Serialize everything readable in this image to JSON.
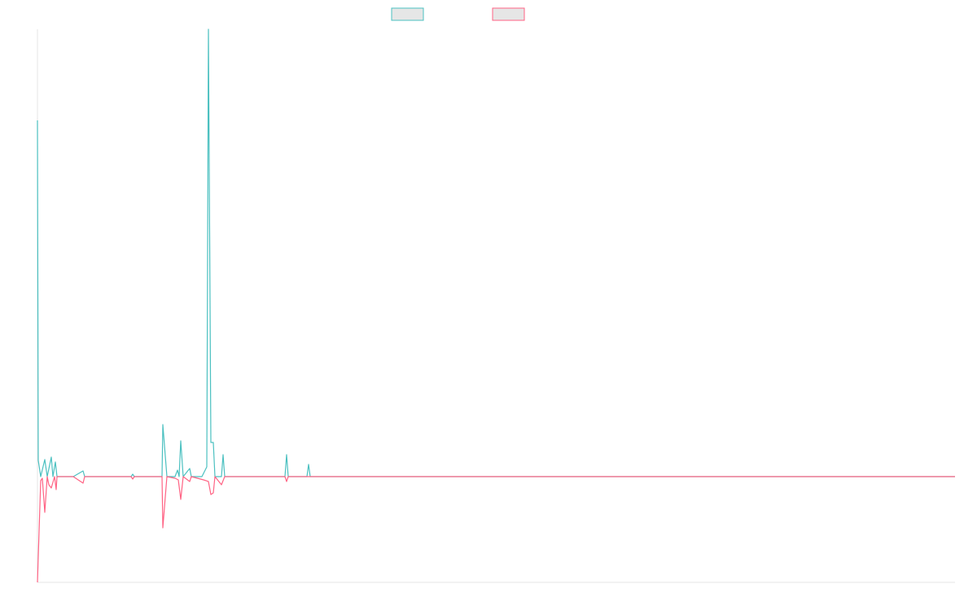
{
  "chart_data": {
    "type": "line",
    "title": "",
    "xlabel": "",
    "ylabel": "",
    "grid": false,
    "legend": "top",
    "colors": {
      "series_a": "#4bc0c0",
      "series_b": "#ff6384",
      "legend_fill": "#e6e6e6",
      "axis": "#e5e5e5"
    },
    "x": [
      0,
      1,
      2,
      3,
      4,
      5,
      6,
      7,
      8,
      9,
      10,
      11,
      12,
      13,
      14,
      15,
      16,
      17,
      18,
      19,
      20,
      21,
      22,
      23,
      24,
      25,
      26,
      27,
      28,
      29,
      30,
      31,
      32,
      33,
      34,
      35,
      36,
      37,
      38,
      39,
      40,
      41,
      42,
      43,
      44,
      45,
      46,
      47,
      48,
      49,
      50,
      51,
      52,
      53,
      54,
      55,
      56,
      57,
      58,
      59,
      60,
      61,
      62,
      63,
      64,
      65,
      66,
      67,
      68,
      69,
      70,
      71,
      72,
      73,
      74,
      75,
      76,
      77,
      78,
      79,
      80,
      81,
      82,
      83,
      84,
      85,
      86,
      87,
      88,
      89,
      90,
      91,
      92,
      93,
      94,
      95,
      96,
      97,
      98,
      99,
      100,
      101,
      102,
      103,
      104,
      105,
      106,
      107,
      108,
      109,
      110,
      111,
      112,
      113,
      114,
      115,
      116,
      117,
      118,
      119,
      120,
      121,
      122,
      123,
      124,
      125,
      126,
      127,
      128,
      129,
      130,
      131,
      132,
      133,
      134,
      135,
      136,
      137,
      138,
      139,
      140,
      141,
      142,
      143,
      144,
      145,
      146,
      147,
      148,
      149,
      150,
      151,
      152,
      153,
      154,
      155,
      156,
      157,
      158,
      159,
      160,
      161,
      162,
      163,
      164,
      165,
      166,
      167,
      168,
      169,
      170,
      171,
      172,
      173,
      174,
      175,
      176,
      177,
      178,
      179,
      180,
      181,
      182,
      183,
      184,
      185,
      186,
      187,
      188,
      189,
      190,
      191,
      192,
      193,
      194,
      195,
      196,
      197,
      198,
      199,
      200,
      201,
      202,
      203,
      204,
      205,
      206,
      207,
      208,
      209,
      210,
      211,
      212,
      213,
      214,
      215,
      216,
      217,
      218,
      219,
      220,
      221,
      222,
      223,
      224,
      225,
      226,
      227,
      228,
      229,
      230,
      231,
      232,
      233,
      234,
      235,
      236,
      237,
      238,
      239,
      240,
      241,
      242,
      243,
      244,
      245,
      246,
      247,
      248,
      249,
      250,
      251,
      252,
      253,
      254,
      255,
      256,
      257,
      258,
      259,
      260,
      261,
      262,
      263,
      264,
      265,
      266,
      267,
      268,
      269,
      270,
      271,
      272,
      273,
      274,
      275,
      276,
      277,
      278,
      279,
      280,
      281,
      282,
      283,
      284,
      285,
      286,
      287,
      288,
      289,
      290,
      291,
      292,
      293,
      294,
      295,
      296,
      297,
      298,
      299,
      300,
      301,
      302,
      303,
      304,
      305,
      306,
      307,
      308,
      309,
      310,
      311,
      312,
      313,
      314,
      315,
      316,
      317,
      318,
      319,
      320,
      321,
      322,
      323,
      324,
      325,
      326,
      327,
      328,
      329,
      330,
      331,
      332,
      333,
      334,
      335,
      336,
      337,
      338,
      339,
      340,
      341,
      342,
      343,
      344,
      345,
      346,
      347,
      348,
      349,
      350,
      351,
      352,
      353,
      354,
      355,
      356,
      357,
      358,
      359,
      360,
      361,
      362,
      363,
      364,
      365,
      366,
      367,
      368,
      369,
      370,
      371,
      372,
      373,
      374,
      375,
      376,
      377,
      378,
      379,
      380,
      381,
      382,
      383,
      384,
      385,
      386,
      387,
      388,
      389,
      390,
      391,
      392,
      393,
      394,
      395,
      396,
      397,
      398,
      399,
      400,
      401,
      402,
      403,
      404,
      405,
      406,
      407,
      408,
      409,
      410,
      411,
      412,
      413,
      414,
      415,
      416,
      417,
      418,
      419,
      420,
      421,
      422,
      423,
      424,
      425,
      426,
      427,
      428,
      429,
      430,
      431,
      432,
      433,
      434,
      435,
      436,
      437,
      438,
      439,
      440,
      441,
      442,
      443,
      444,
      445,
      446,
      447,
      448,
      449,
      450,
      451,
      452,
      453,
      454,
      455,
      456,
      457,
      458,
      459,
      460,
      461,
      462,
      463,
      464,
      465,
      466,
      467,
      468,
      469,
      470,
      471,
      472,
      473,
      474,
      475,
      476,
      477,
      478,
      479,
      480,
      481,
      482,
      483,
      484,
      485,
      486,
      487,
      488,
      489,
      490,
      491,
      492,
      493,
      494,
      495,
      496,
      497,
      498,
      499,
      500,
      501,
      502,
      503,
      504,
      505,
      506,
      507,
      508,
      509,
      510,
      511,
      512,
      513,
      514,
      515,
      516,
      517,
      518,
      519,
      520,
      521,
      522,
      523,
      524,
      525,
      526,
      527,
      528,
      529,
      530,
      531,
      532,
      533,
      534,
      535,
      536,
      537,
      538,
      539,
      540,
      541,
      542,
      543,
      544,
      545,
      546,
      547,
      548,
      549,
      550,
      551,
      552,
      553,
      554,
      555,
      556,
      557,
      558,
      559,
      560,
      561,
      562,
      563,
      564,
      565,
      566,
      567,
      568,
      569,
      570,
      571,
      572,
      573,
      574,
      575,
      576,
      577,
      578,
      579,
      580,
      581,
      582,
      583,
      584,
      585,
      586,
      587,
      588,
      589,
      590,
      591,
      592,
      593,
      594,
      595,
      596,
      597,
      598,
      599,
      600,
      601,
      602,
      603,
      604,
      605,
      606,
      607,
      608,
      609,
      610,
      611,
      612,
      613,
      614,
      615,
      616,
      617,
      618,
      619,
      620,
      621,
      622,
      623,
      624,
      625,
      626,
      627,
      628,
      629,
      630,
      631,
      632,
      633,
      634,
      635,
      636,
      637,
      638,
      639,
      640,
      641,
      642,
      643,
      644,
      645,
      646,
      647,
      648,
      649,
      650,
      651,
      652,
      653,
      654,
      655,
      656,
      657,
      658,
      659,
      660,
      661,
      662,
      663,
      664,
      665,
      666,
      667,
      668,
      669,
      670,
      671,
      672,
      673,
      674,
      675,
      676,
      677,
      678,
      679,
      680,
      681,
      682,
      683,
      684,
      685,
      686,
      687,
      688,
      689,
      690,
      691,
      692,
      693,
      694,
      695,
      696,
      697,
      698,
      699,
      700,
      701,
      702,
      703,
      704,
      705,
      706,
      707,
      708,
      709,
      710,
      711,
      712,
      713,
      714,
      715,
      716,
      717,
      718,
      719,
      720,
      721,
      722,
      723,
      724,
      725,
      726,
      727,
      728,
      729,
      730,
      731,
      732,
      733,
      734,
      735,
      736,
      737,
      738,
      739,
      740,
      741,
      742,
      743,
      744,
      745,
      746,
      747,
      748,
      749,
      750,
      751,
      752,
      753,
      754,
      755,
      756,
      757,
      758,
      759,
      760,
      761,
      762,
      763,
      764,
      765,
      766,
      767,
      768,
      769,
      770,
      771,
      772,
      773,
      774,
      775,
      776,
      777,
      778,
      779,
      780,
      781,
      782,
      783,
      784,
      785,
      786,
      787,
      788,
      789,
      790,
      791,
      792,
      793,
      794,
      795,
      796,
      797,
      798,
      799,
      800,
      801,
      802,
      803,
      804,
      805,
      806,
      807,
      808,
      809,
      810,
      811,
      812,
      813,
      814,
      815,
      816,
      817,
      818,
      819,
      820,
      821,
      822,
      823,
      824,
      825,
      826,
      827,
      828,
      829,
      830,
      831,
      832,
      833,
      834,
      835,
      836,
      837,
      838,
      839,
      840,
      841,
      842,
      843,
      844,
      845,
      846,
      847,
      848,
      849,
      850,
      851,
      852,
      853,
      854,
      855,
      856,
      857,
      858,
      859,
      860,
      861,
      862,
      863,
      864,
      865,
      866,
      867,
      868,
      869,
      870,
      871,
      872,
      873,
      874,
      875,
      876,
      877,
      878,
      879,
      880,
      881,
      882,
      883,
      884,
      885,
      886,
      887,
      888,
      889,
      890,
      891,
      892,
      893,
      894,
      895,
      896,
      897,
      898,
      899,
      900,
      901,
      902,
      903,
      904,
      905,
      906,
      907,
      908,
      909,
      910,
      911,
      912,
      913,
      914,
      915,
      916,
      917,
      918,
      919,
      920,
      921,
      922,
      923,
      924,
      925,
      926,
      927,
      928,
      929,
      930,
      931,
      932,
      933,
      934,
      935,
      936,
      937,
      938,
      939,
      940,
      941,
      942,
      943,
      944,
      945,
      946,
      947,
      948,
      949,
      950,
      951,
      952,
      953,
      954,
      955,
      956,
      957,
      958,
      959,
      960,
      961,
      962,
      963,
      964,
      965,
      966,
      967,
      968,
      969,
      970,
      971,
      972,
      973,
      974,
      975,
      976,
      977,
      978,
      979,
      980,
      981,
      982,
      983,
      984,
      985,
      986,
      987,
      988,
      989,
      990,
      991,
      992,
      993,
      994,
      995,
      996,
      997,
      998,
      999,
      1000,
      1001,
      1002,
      1003,
      1004,
      1005,
      1006,
      1007,
      1008,
      1009,
      1010,
      1011,
      1012,
      1013,
      1014,
      1015,
      1016,
      1017,
      1018,
      1019,
      1020,
      1021,
      1022,
      1023,
      1024,
      1025,
      1026,
      1027,
      1028,
      1029,
      1030,
      1031,
      1032,
      1033,
      1034,
      1035,
      1036,
      1037,
      1038,
      1039,
      1040,
      1041,
      1042,
      1043,
      1044,
      1045,
      1046,
      1047,
      1048,
      1049,
      1050,
      1051,
      1052,
      1053,
      1054,
      1055,
      1056,
      1057,
      1058,
      1059,
      1060,
      1061,
      1062,
      1063,
      1064,
      1065,
      1066,
      1067,
      1068,
      1069,
      1070,
      1071,
      1072,
      1073,
      1074,
      1075,
      1076,
      1077,
      1078,
      1079,
      1080,
      1081,
      1082,
      1083,
      1084,
      1085,
      1086,
      1087,
      1088,
      1089,
      1090,
      1091,
      1092,
      1093,
      1094,
      1095,
      1096,
      1097,
      1098,
      1099,
      1100,
      1101,
      1102,
      1103,
      1104,
      1105,
      1106,
      1107,
      1108,
      1109,
      1110,
      1111,
      1112,
      1113,
      1114,
      1115,
      1116,
      1117,
      1118,
      1119,
      1120,
      1121,
      1122,
      1123,
      1124,
      1125,
      1126,
      1127
    ],
    "ylim": [
      -130,
      550
    ],
    "series": [
      {
        "id": "series_a",
        "color": "#4bc0c0",
        "points": [
          [
            0,
            438
          ],
          [
            1,
            20
          ],
          [
            4,
            0
          ],
          [
            9,
            21
          ],
          [
            12,
            0
          ],
          [
            17,
            24
          ],
          [
            19,
            0
          ],
          [
            22,
            18
          ],
          [
            24,
            0
          ],
          [
            44,
            0
          ],
          [
            56,
            7
          ],
          [
            58,
            0
          ],
          [
            115,
            0
          ],
          [
            117,
            3
          ],
          [
            119,
            0
          ],
          [
            153,
            0
          ],
          [
            154,
            64
          ],
          [
            159,
            0
          ],
          [
            169,
            0
          ],
          [
            172,
            8
          ],
          [
            174,
            0
          ],
          [
            176,
            44
          ],
          [
            179,
            0
          ],
          [
            187,
            10
          ],
          [
            189,
            0
          ],
          [
            202,
            0
          ],
          [
            208,
            12
          ],
          [
            210,
            550
          ],
          [
            213,
            42
          ],
          [
            216,
            42
          ],
          [
            218,
            0
          ],
          [
            226,
            0
          ],
          [
            228,
            27
          ],
          [
            230,
            0
          ],
          [
            304,
            0
          ],
          [
            306,
            27
          ],
          [
            308,
            0
          ],
          [
            331,
            0
          ],
          [
            333,
            15
          ],
          [
            335,
            0
          ],
          [
            1127,
            0
          ]
        ]
      },
      {
        "id": "series_b",
        "color": "#ff6384",
        "points": [
          [
            0,
            -130
          ],
          [
            4,
            -5
          ],
          [
            6,
            -2
          ],
          [
            9,
            -44
          ],
          [
            12,
            0
          ],
          [
            14,
            -10
          ],
          [
            17,
            -14
          ],
          [
            21,
            0
          ],
          [
            23,
            -16
          ],
          [
            24,
            0
          ],
          [
            44,
            0
          ],
          [
            56,
            -8
          ],
          [
            58,
            0
          ],
          [
            115,
            0
          ],
          [
            117,
            -3
          ],
          [
            119,
            0
          ],
          [
            153,
            0
          ],
          [
            154,
            -63
          ],
          [
            159,
            0
          ],
          [
            169,
            -2
          ],
          [
            173,
            -4
          ],
          [
            176,
            -28
          ],
          [
            179,
            0
          ],
          [
            187,
            -6
          ],
          [
            189,
            0
          ],
          [
            204,
            -4
          ],
          [
            210,
            -6
          ],
          [
            213,
            -22
          ],
          [
            216,
            -20
          ],
          [
            218,
            0
          ],
          [
            226,
            -10
          ],
          [
            230,
            0
          ],
          [
            304,
            0
          ],
          [
            306,
            -6
          ],
          [
            308,
            0
          ],
          [
            1127,
            0
          ]
        ]
      }
    ]
  }
}
